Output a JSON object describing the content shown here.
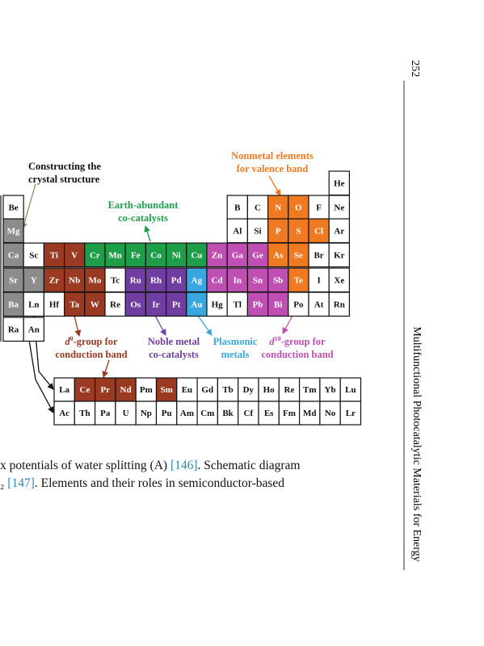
{
  "page_number": "252",
  "running_head": "Multifunctional Photocatalytic Materials for Energy",
  "figure": {
    "table": {
      "rows": [
        [
          {
            "symbol": "He",
            "color": "#ffffff"
          }
        ],
        [
          {
            "symbol": "Be",
            "color": "#ffffff"
          },
          {
            "symbol": "B",
            "color": "#ffffff"
          },
          {
            "symbol": "C",
            "color": "#ffffff"
          },
          {
            "symbol": "N",
            "color": "#f07a22"
          },
          {
            "symbol": "O",
            "color": "#f07a22"
          },
          {
            "symbol": "F",
            "color": "#ffffff"
          },
          {
            "symbol": "Ne",
            "color": "#ffffff"
          }
        ],
        [
          {
            "symbol": "Mg",
            "color": "#8c8c8c"
          },
          {
            "symbol": "Al",
            "color": "#ffffff"
          },
          {
            "symbol": "Si",
            "color": "#ffffff"
          },
          {
            "symbol": "P",
            "color": "#f07a22"
          },
          {
            "symbol": "S",
            "color": "#f07a22"
          },
          {
            "symbol": "Cl",
            "color": "#f07a22"
          },
          {
            "symbol": "Ar",
            "color": "#ffffff"
          }
        ],
        [
          {
            "symbol": "Ca",
            "color": "#8c8c8c"
          },
          {
            "symbol": "Sc",
            "color": "#ffffff"
          },
          {
            "symbol": "Ti",
            "color": "#9a3a22"
          },
          {
            "symbol": "V",
            "color": "#9a3a22"
          },
          {
            "symbol": "Cr",
            "color": "#1f9e4a"
          },
          {
            "symbol": "Mn",
            "color": "#1f9e4a"
          },
          {
            "symbol": "Fe",
            "color": "#1f9e4a"
          },
          {
            "symbol": "Co",
            "color": "#1f9e4a"
          },
          {
            "symbol": "Ni",
            "color": "#1f9e4a"
          },
          {
            "symbol": "Cu",
            "color": "#1f9e4a"
          },
          {
            "symbol": "Zn",
            "color": "#c04fb4"
          },
          {
            "symbol": "Ga",
            "color": "#c04fb4"
          },
          {
            "symbol": "Ge",
            "color": "#c04fb4"
          },
          {
            "symbol": "As",
            "color": "#f07a22"
          },
          {
            "symbol": "Se",
            "color": "#f07a22"
          },
          {
            "symbol": "Br",
            "color": "#ffffff"
          },
          {
            "symbol": "Kr",
            "color": "#ffffff"
          }
        ],
        [
          {
            "symbol": "Sr",
            "color": "#8c8c8c"
          },
          {
            "symbol": "Y",
            "color": "#8c8c8c"
          },
          {
            "symbol": "Zr",
            "color": "#9a3a22"
          },
          {
            "symbol": "Nb",
            "color": "#9a3a22"
          },
          {
            "symbol": "Mo",
            "color": "#9a3a22"
          },
          {
            "symbol": "Tc",
            "color": "#ffffff"
          },
          {
            "symbol": "Ru",
            "color": "#6f3ea0"
          },
          {
            "symbol": "Rh",
            "color": "#6f3ea0"
          },
          {
            "symbol": "Pd",
            "color": "#6f3ea0"
          },
          {
            "symbol": "Ag",
            "color": "#3aa6e0"
          },
          {
            "symbol": "Cd",
            "color": "#c04fb4"
          },
          {
            "symbol": "In",
            "color": "#c04fb4"
          },
          {
            "symbol": "Sn",
            "color": "#c04fb4"
          },
          {
            "symbol": "Sb",
            "color": "#c04fb4"
          },
          {
            "symbol": "Te",
            "color": "#f07a22"
          },
          {
            "symbol": "I",
            "color": "#ffffff"
          },
          {
            "symbol": "Xe",
            "color": "#ffffff"
          }
        ],
        [
          {
            "symbol": "Ba",
            "color": "#8c8c8c"
          },
          {
            "symbol": "Ln",
            "color": "#ffffff"
          },
          {
            "symbol": "Hf",
            "color": "#ffffff"
          },
          {
            "symbol": "Ta",
            "color": "#9a3a22"
          },
          {
            "symbol": "W",
            "color": "#9a3a22"
          },
          {
            "symbol": "Re",
            "color": "#ffffff"
          },
          {
            "symbol": "Os",
            "color": "#6f3ea0"
          },
          {
            "symbol": "Ir",
            "color": "#6f3ea0"
          },
          {
            "symbol": "Pt",
            "color": "#6f3ea0"
          },
          {
            "symbol": "Au",
            "color": "#3aa6e0"
          },
          {
            "symbol": "Hg",
            "color": "#ffffff"
          },
          {
            "symbol": "Tl",
            "color": "#ffffff"
          },
          {
            "symbol": "Pb",
            "color": "#c04fb4"
          },
          {
            "symbol": "Bi",
            "color": "#c04fb4"
          },
          {
            "symbol": "Po",
            "color": "#ffffff"
          },
          {
            "symbol": "At",
            "color": "#ffffff"
          },
          {
            "symbol": "Rn",
            "color": "#ffffff"
          }
        ],
        [
          {
            "symbol": "Ra",
            "color": "#ffffff"
          },
          {
            "symbol": "An",
            "color": "#ffffff"
          }
        ]
      ],
      "f_block": [
        [
          {
            "symbol": "La",
            "color": "#ffffff"
          },
          {
            "symbol": "Ce",
            "color": "#9a3a22"
          },
          {
            "symbol": "Pr",
            "color": "#9a3a22"
          },
          {
            "symbol": "Nd",
            "color": "#9a3a22"
          },
          {
            "symbol": "Pm",
            "color": "#ffffff"
          },
          {
            "symbol": "Sm",
            "color": "#9a3a22"
          },
          {
            "symbol": "Eu",
            "color": "#ffffff"
          },
          {
            "symbol": "Gd",
            "color": "#ffffff"
          },
          {
            "symbol": "Tb",
            "color": "#ffffff"
          },
          {
            "symbol": "Dy",
            "color": "#ffffff"
          },
          {
            "symbol": "Ho",
            "color": "#ffffff"
          },
          {
            "symbol": "Re",
            "color": "#ffffff"
          },
          {
            "symbol": "Tm",
            "color": "#ffffff"
          },
          {
            "symbol": "Yb",
            "color": "#ffffff"
          },
          {
            "symbol": "Lu",
            "color": "#ffffff"
          }
        ],
        [
          {
            "symbol": "Ac",
            "color": "#ffffff"
          },
          {
            "symbol": "Th",
            "color": "#ffffff"
          },
          {
            "symbol": "Pa",
            "color": "#ffffff"
          },
          {
            "symbol": "U",
            "color": "#ffffff"
          },
          {
            "symbol": "Np",
            "color": "#ffffff"
          },
          {
            "symbol": "Pu",
            "color": "#ffffff"
          },
          {
            "symbol": "Am",
            "color": "#ffffff"
          },
          {
            "symbol": "Cm",
            "color": "#ffffff"
          },
          {
            "symbol": "Bk",
            "color": "#ffffff"
          },
          {
            "symbol": "Cf",
            "color": "#ffffff"
          },
          {
            "symbol": "Es",
            "color": "#ffffff"
          },
          {
            "symbol": "Fm",
            "color": "#ffffff"
          },
          {
            "symbol": "Md",
            "color": "#ffffff"
          },
          {
            "symbol": "No",
            "color": "#ffffff"
          },
          {
            "symbol": "Lr",
            "color": "#ffffff"
          }
        ]
      ]
    },
    "labels": {
      "constructing": {
        "lines": [
          "Constructing the",
          "crystal structure"
        ],
        "color": "#111111"
      },
      "nonmetal": {
        "lines": [
          "Nonmetal elements",
          "for valence band"
        ],
        "color": "#f07a22"
      },
      "earth": {
        "lines": [
          "Earth-abundant",
          "co-catalysts"
        ],
        "color": "#1f9e4a"
      },
      "noble": {
        "lines": [
          "Noble metal",
          "co-catalysts"
        ],
        "color": "#6f3ea0"
      },
      "plasmonic": {
        "lines": [
          "Plasmonic",
          "metals"
        ],
        "color": "#3aa6e0"
      },
      "d0": {
        "d": "d",
        "sup": "0",
        "rest": "-group for",
        "line2": "conduction band",
        "color": "#9a3a22"
      },
      "d10": {
        "d": "d",
        "sup": "10",
        "rest": "-group for",
        "line2": "conduction band",
        "color": "#c04fb4"
      }
    }
  },
  "caption": {
    "lines": [
      [
        {
          "text": "x potentials of water splitting (A) ",
          "link": false
        },
        {
          "text": "[146]",
          "link": true
        },
        {
          "text": ". Schematic diagram",
          "link": false
        }
      ],
      [
        {
          "text": "₂ ",
          "link": false
        },
        {
          "text": "[147]",
          "link": true
        },
        {
          "text": ". Elements and their roles in semiconductor-based",
          "link": false
        }
      ]
    ]
  }
}
